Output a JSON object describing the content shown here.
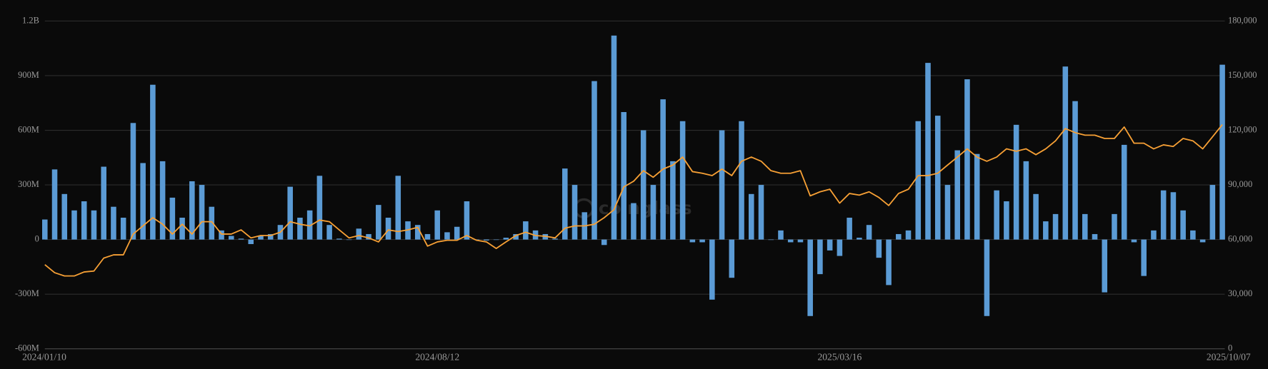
{
  "chart_data": {
    "type": "bar",
    "watermark": "coinglass",
    "categories": [
      "2024/01/10",
      null,
      null,
      null,
      null,
      null,
      null,
      null,
      null,
      null,
      null,
      null,
      null,
      null,
      null,
      null,
      null,
      null,
      null,
      null,
      null,
      null,
      null,
      null,
      null,
      null,
      null,
      null,
      null,
      null,
      null,
      null,
      null,
      null,
      null,
      null,
      null,
      null,
      null,
      null,
      "2024/08/12",
      null,
      null,
      null,
      null,
      null,
      null,
      null,
      null,
      null,
      null,
      null,
      null,
      null,
      null,
      null,
      null,
      null,
      null,
      null,
      null,
      null,
      null,
      null,
      null,
      null,
      null,
      null,
      null,
      null,
      null,
      null,
      null,
      null,
      null,
      null,
      null,
      null,
      null,
      null,
      null,
      "2025/03/16",
      null,
      null,
      null,
      null,
      null,
      null,
      null,
      null,
      null,
      null,
      null,
      null,
      null,
      null,
      null,
      null,
      null,
      null,
      null,
      null,
      null,
      null,
      null,
      null,
      null,
      null,
      null,
      null,
      null,
      null,
      null,
      null,
      null,
      null,
      null,
      null,
      null,
      null,
      "2025/10/07"
    ],
    "series": [
      {
        "type": "bar",
        "color": "#5b9bd5",
        "values": [
          110000000.0,
          385000000.0,
          250000000.0,
          160000000.0,
          210000000.0,
          160000000.0,
          400000000.0,
          180000000.0,
          120000000.0,
          640000000.0,
          420000000.0,
          850000000.0,
          430000000.0,
          230000000.0,
          120000000.0,
          320000000.0,
          300000000.0,
          180000000.0,
          50000000.0,
          20000000.0,
          5000000.0,
          -25000000.0,
          20000000.0,
          30000000.0,
          80000000.0,
          290000000.0,
          120000000.0,
          160000000.0,
          350000000.0,
          80000000.0,
          5000000.0,
          0,
          60000000.0,
          30000000.0,
          190000000.0,
          120000000.0,
          350000000.0,
          100000000.0,
          80000000.0,
          30000000.0,
          160000000.0,
          40000000.0,
          70000000.0,
          210000000.0,
          0,
          -5000000.0,
          0,
          10000000.0,
          30000000.0,
          100000000.0,
          50000000.0,
          30000000.0,
          5000000.0,
          390000000.0,
          300000000.0,
          150000000.0,
          870000000.0,
          -30000000.0,
          1120000000.0,
          700000000.0,
          200000000.0,
          600000000.0,
          300000000.0,
          770000000.0,
          430000000.0,
          650000000.0,
          -15000000.0,
          -15000000.0,
          -330000000.0,
          600000000.0,
          -210000000.0,
          650000000.0,
          250000000.0,
          300000000.0,
          0,
          50000000.0,
          -15000000.0,
          -15000000.0,
          -420000000.0,
          -190000000.0,
          -60000000.0,
          -90000000.0,
          120000000.0,
          10000000.0,
          80000000.0,
          -100000000.0,
          -250000000.0,
          30000000.0,
          50000000.0,
          650000000.0,
          970000000.0,
          680000000.0,
          300000000.0,
          490000000.0,
          880000000.0,
          470000000.0,
          -420000000.0,
          270000000.0,
          210000000.0,
          630000000.0,
          430000000.0,
          250000000.0,
          100000000.0,
          140000000.0,
          950000000.0,
          760000000.0,
          140000000.0,
          30000000.0,
          -290000000.0,
          140000000.0,
          520000000.0,
          -15000000.0,
          -200000000.0,
          50000000.0,
          270000000.0,
          260000000.0,
          160000000.0,
          50000000.0,
          -15000000.0,
          300000000.0,
          960000000.0
        ]
      },
      {
        "type": "line",
        "axis": "y2",
        "color": "#f7a035",
        "values": [
          46200,
          41800,
          40000,
          40000,
          42200,
          42700,
          49800,
          51600,
          51600,
          63000,
          67500,
          72000,
          68400,
          63000,
          68400,
          63000,
          69800,
          69800,
          63000,
          63000,
          65300,
          60900,
          62200,
          62200,
          64000,
          69800,
          68400,
          67500,
          70700,
          69800,
          65300,
          60900,
          62200,
          60900,
          58700,
          65300,
          64400,
          65300,
          66700,
          56400,
          58700,
          59600,
          59600,
          62200,
          59600,
          58700,
          55100,
          58700,
          62200,
          64000,
          62200,
          61800,
          60900,
          66200,
          67500,
          67500,
          68400,
          72000,
          76400,
          88900,
          92000,
          97800,
          94200,
          98700,
          100900,
          105300,
          97300,
          96400,
          95100,
          98700,
          95100,
          103000,
          105300,
          103000,
          97800,
          96400,
          96400,
          97800,
          84000,
          86200,
          87600,
          80000,
          85300,
          84400,
          86200,
          83100,
          78700,
          85300,
          87600,
          95100,
          95100,
          96400,
          100900,
          105300,
          109800,
          105300,
          103000,
          105300,
          109800,
          108500,
          109800,
          106600,
          109800,
          114200,
          120900,
          118700,
          117300,
          117300,
          115500,
          115500,
          121800,
          112900,
          112900,
          109800,
          112000,
          111100,
          115500,
          114200,
          109800,
          116400,
          123100
        ]
      }
    ],
    "ylim": [
      -600000000,
      1200000000
    ],
    "yticks": [
      {
        "value": -600000000,
        "label": "-600M"
      },
      {
        "value": -300000000,
        "label": "-300M"
      },
      0,
      {
        "value": 300000000,
        "label": "300M"
      },
      {
        "value": 600000000,
        "label": "600M"
      },
      {
        "value": 900000000,
        "label": "900M"
      },
      {
        "value": 1200000000,
        "label": "1.2B"
      }
    ],
    "y2lim": [
      0,
      180000
    ],
    "y2ticks": [
      0,
      {
        "value": 30000,
        "label": "30,000"
      },
      {
        "value": 60000,
        "label": "60,000"
      },
      {
        "value": 90000,
        "label": "90,000"
      },
      {
        "value": 120000,
        "label": "120,000"
      },
      {
        "value": 150000,
        "label": "150,000"
      },
      {
        "value": 180000,
        "label": "180,000"
      }
    ],
    "grid": true
  }
}
